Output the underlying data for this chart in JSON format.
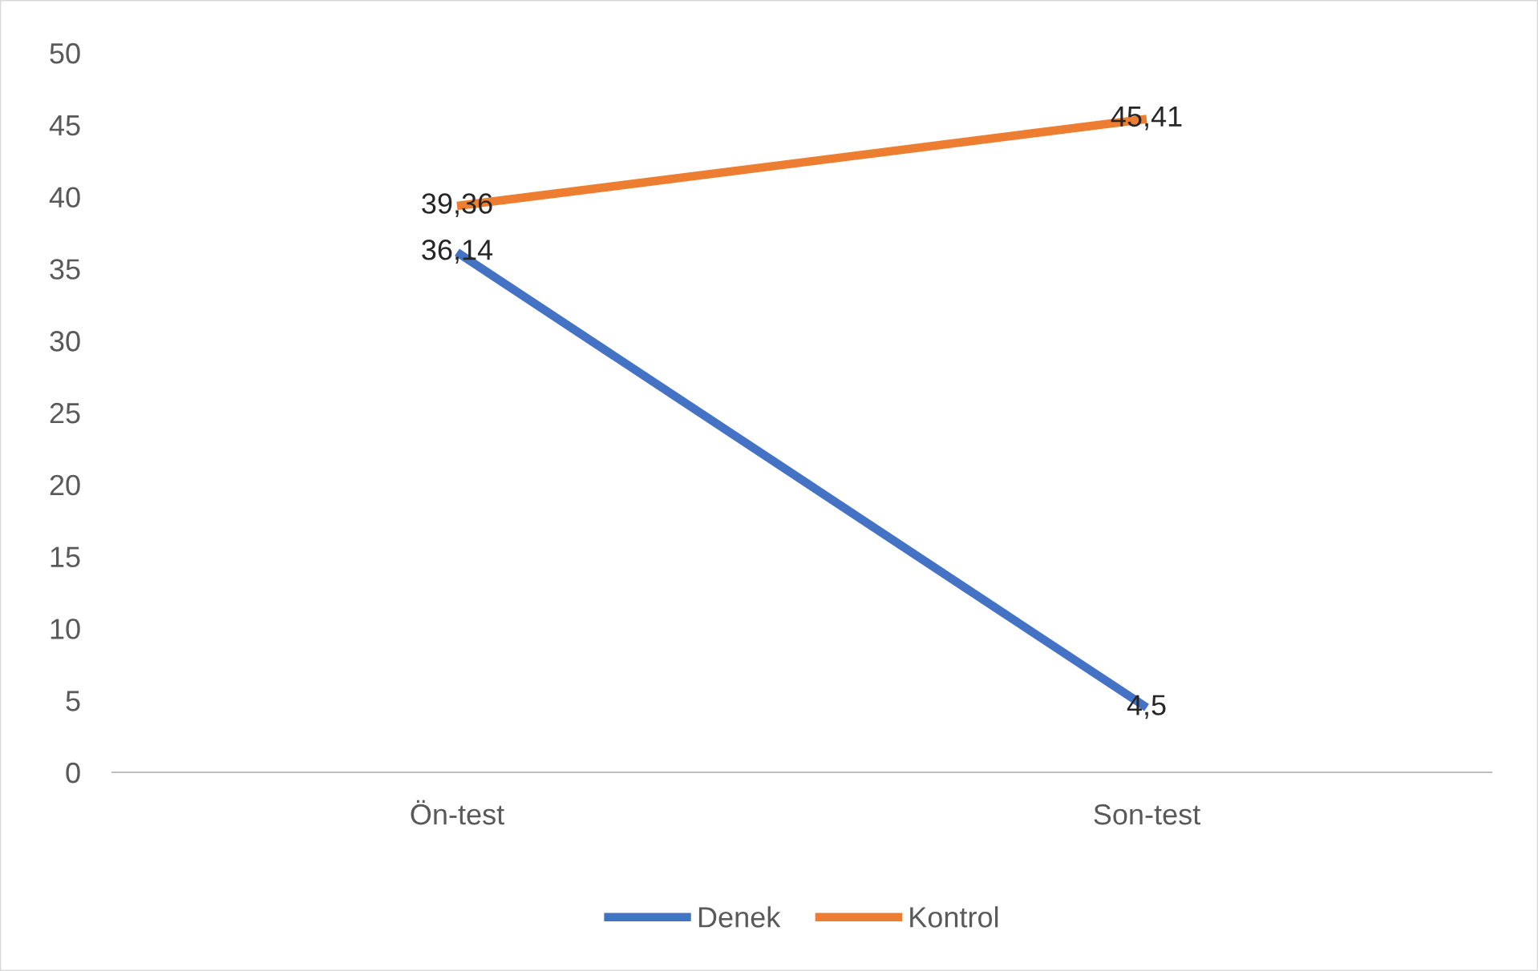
{
  "chart_data": {
    "type": "line",
    "categories": [
      "Ön-test",
      "Son-test"
    ],
    "series": [
      {
        "name": "Denek",
        "color": "#4472c4",
        "values": [
          36.14,
          4.5
        ],
        "value_labels": [
          "36,14",
          "4,5"
        ]
      },
      {
        "name": "Kontrol",
        "color": "#ed7d31",
        "values": [
          39.36,
          45.41
        ],
        "value_labels": [
          "39,36",
          "45,41"
        ]
      }
    ],
    "ylim": [
      0,
      50
    ],
    "yticks": [
      0,
      5,
      10,
      15,
      20,
      25,
      30,
      35,
      40,
      45,
      50
    ],
    "grid": false,
    "legend": "bottom",
    "marker": "none",
    "line_style": "solid"
  }
}
